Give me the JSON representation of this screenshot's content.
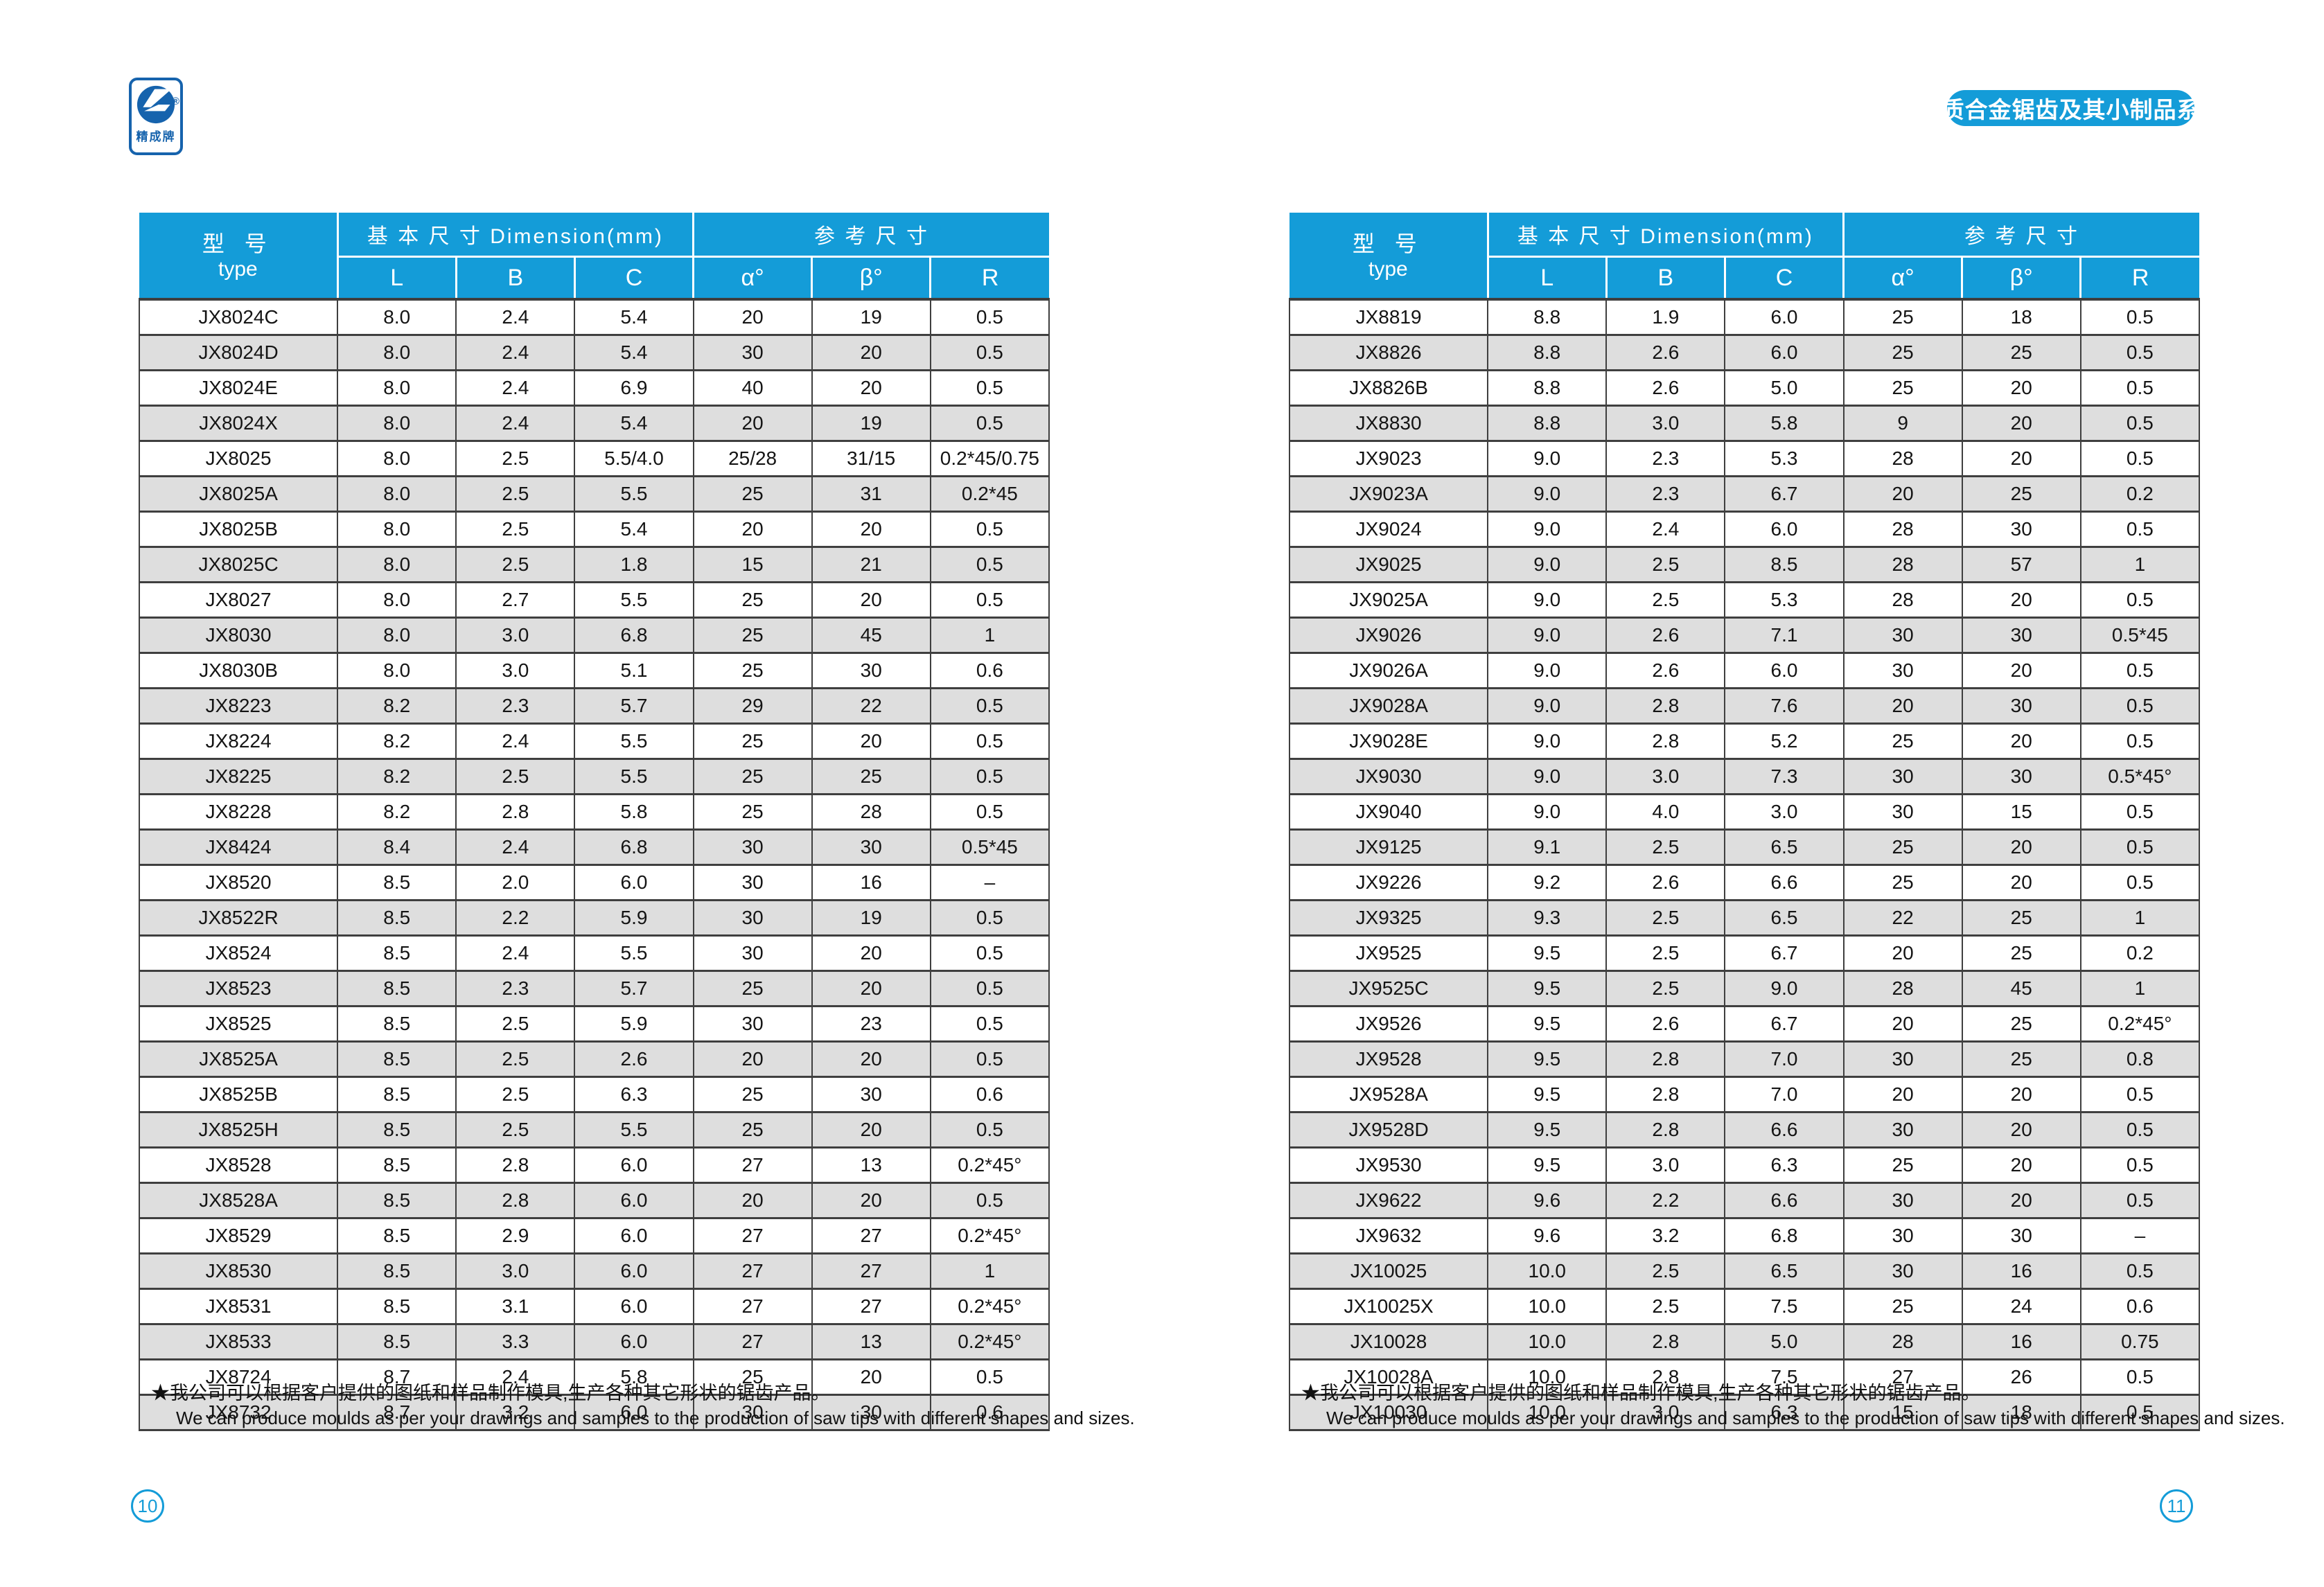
{
  "page": {
    "badge_label": "硬质合金锯齿及其小制品系列",
    "logo": {
      "brand_cn": "精成牌",
      "registered_mark": "®"
    },
    "footnote_cn": "★我公司可以根据客户提供的图纸和样品制作模具,生产各种其它形状的锯齿产品。",
    "footnote_en": "We can produce moulds as per your drawings and samples to the production of saw tips with different shapes and sizes.",
    "page_number_left": "10",
    "page_number_right": "11"
  },
  "colors": {
    "accent_blue": "#149cd8",
    "logo_blue": "#1663ad",
    "row_alt_gray": "#dedede",
    "grid_line": "#3f3f3f"
  },
  "table_header": {
    "type_cn": "型  号",
    "type_en": "type",
    "dimension_group": "基 本 尺 寸 Dimension(mm)",
    "reference_group": "参 考 尺 寸",
    "col_l": "L",
    "col_b": "B",
    "col_c": "C",
    "col_alpha": "α°",
    "col_beta": "β°",
    "col_r": "R"
  },
  "tables": [
    {
      "rows": [
        [
          "JX8024C",
          "8.0",
          "2.4",
          "5.4",
          "20",
          "19",
          "0.5"
        ],
        [
          "JX8024D",
          "8.0",
          "2.4",
          "5.4",
          "30",
          "20",
          "0.5"
        ],
        [
          "JX8024E",
          "8.0",
          "2.4",
          "6.9",
          "40",
          "20",
          "0.5"
        ],
        [
          "JX8024X",
          "8.0",
          "2.4",
          "5.4",
          "20",
          "19",
          "0.5"
        ],
        [
          "JX8025",
          "8.0",
          "2.5",
          "5.5/4.0",
          "25/28",
          "31/15",
          "0.2*45/0.75"
        ],
        [
          "JX8025A",
          "8.0",
          "2.5",
          "5.5",
          "25",
          "31",
          "0.2*45"
        ],
        [
          "JX8025B",
          "8.0",
          "2.5",
          "5.4",
          "20",
          "20",
          "0.5"
        ],
        [
          "JX8025C",
          "8.0",
          "2.5",
          "1.8",
          "15",
          "21",
          "0.5"
        ],
        [
          "JX8027",
          "8.0",
          "2.7",
          "5.5",
          "25",
          "20",
          "0.5"
        ],
        [
          "JX8030",
          "8.0",
          "3.0",
          "6.8",
          "25",
          "45",
          "1"
        ],
        [
          "JX8030B",
          "8.0",
          "3.0",
          "5.1",
          "25",
          "30",
          "0.6"
        ],
        [
          "JX8223",
          "8.2",
          "2.3",
          "5.7",
          "29",
          "22",
          "0.5"
        ],
        [
          "JX8224",
          "8.2",
          "2.4",
          "5.5",
          "25",
          "20",
          "0.5"
        ],
        [
          "JX8225",
          "8.2",
          "2.5",
          "5.5",
          "25",
          "25",
          "0.5"
        ],
        [
          "JX8228",
          "8.2",
          "2.8",
          "5.8",
          "25",
          "28",
          "0.5"
        ],
        [
          "JX8424",
          "8.4",
          "2.4",
          "6.8",
          "30",
          "30",
          "0.5*45"
        ],
        [
          "JX8520",
          "8.5",
          "2.0",
          "6.0",
          "30",
          "16",
          "–"
        ],
        [
          "JX8522R",
          "8.5",
          "2.2",
          "5.9",
          "30",
          "19",
          "0.5"
        ],
        [
          "JX8524",
          "8.5",
          "2.4",
          "5.5",
          "30",
          "20",
          "0.5"
        ],
        [
          "JX8523",
          "8.5",
          "2.3",
          "5.7",
          "25",
          "20",
          "0.5"
        ],
        [
          "JX8525",
          "8.5",
          "2.5",
          "5.9",
          "30",
          "23",
          "0.5"
        ],
        [
          "JX8525A",
          "8.5",
          "2.5",
          "2.6",
          "20",
          "20",
          "0.5"
        ],
        [
          "JX8525B",
          "8.5",
          "2.5",
          "6.3",
          "25",
          "30",
          "0.6"
        ],
        [
          "JX8525H",
          "8.5",
          "2.5",
          "5.5",
          "25",
          "20",
          "0.5"
        ],
        [
          "JX8528",
          "8.5",
          "2.8",
          "6.0",
          "27",
          "13",
          "0.2*45°"
        ],
        [
          "JX8528A",
          "8.5",
          "2.8",
          "6.0",
          "20",
          "20",
          "0.5"
        ],
        [
          "JX8529",
          "8.5",
          "2.9",
          "6.0",
          "27",
          "27",
          "0.2*45°"
        ],
        [
          "JX8530",
          "8.5",
          "3.0",
          "6.0",
          "27",
          "27",
          "1"
        ],
        [
          "JX8531",
          "8.5",
          "3.1",
          "6.0",
          "27",
          "27",
          "0.2*45°"
        ],
        [
          "JX8533",
          "8.5",
          "3.3",
          "6.0",
          "27",
          "13",
          "0.2*45°"
        ],
        [
          "JX8724",
          "8.7",
          "2.4",
          "5.8",
          "25",
          "20",
          "0.5"
        ],
        [
          "JX8732",
          "8.7",
          "3.2",
          "6.0",
          "30",
          "30",
          "0.6"
        ]
      ]
    },
    {
      "rows": [
        [
          "JX8819",
          "8.8",
          "1.9",
          "6.0",
          "25",
          "18",
          "0.5"
        ],
        [
          "JX8826",
          "8.8",
          "2.6",
          "6.0",
          "25",
          "25",
          "0.5"
        ],
        [
          "JX8826B",
          "8.8",
          "2.6",
          "5.0",
          "25",
          "20",
          "0.5"
        ],
        [
          "JX8830",
          "8.8",
          "3.0",
          "5.8",
          "9",
          "20",
          "0.5"
        ],
        [
          "JX9023",
          "9.0",
          "2.3",
          "5.3",
          "28",
          "20",
          "0.5"
        ],
        [
          "JX9023A",
          "9.0",
          "2.3",
          "6.7",
          "20",
          "25",
          "0.2"
        ],
        [
          "JX9024",
          "9.0",
          "2.4",
          "6.0",
          "28",
          "30",
          "0.5"
        ],
        [
          "JX9025",
          "9.0",
          "2.5",
          "8.5",
          "28",
          "57",
          "1"
        ],
        [
          "JX9025A",
          "9.0",
          "2.5",
          "5.3",
          "28",
          "20",
          "0.5"
        ],
        [
          "JX9026",
          "9.0",
          "2.6",
          "7.1",
          "30",
          "30",
          "0.5*45"
        ],
        [
          "JX9026A",
          "9.0",
          "2.6",
          "6.0",
          "30",
          "20",
          "0.5"
        ],
        [
          "JX9028A",
          "9.0",
          "2.8",
          "7.6",
          "20",
          "30",
          "0.5"
        ],
        [
          "JX9028E",
          "9.0",
          "2.8",
          "5.2",
          "25",
          "20",
          "0.5"
        ],
        [
          "JX9030",
          "9.0",
          "3.0",
          "7.3",
          "30",
          "30",
          "0.5*45°"
        ],
        [
          "JX9040",
          "9.0",
          "4.0",
          "3.0",
          "30",
          "15",
          "0.5"
        ],
        [
          "JX9125",
          "9.1",
          "2.5",
          "6.5",
          "25",
          "20",
          "0.5"
        ],
        [
          "JX9226",
          "9.2",
          "2.6",
          "6.6",
          "25",
          "20",
          "0.5"
        ],
        [
          "JX9325",
          "9.3",
          "2.5",
          "6.5",
          "22",
          "25",
          "1"
        ],
        [
          "JX9525",
          "9.5",
          "2.5",
          "6.7",
          "20",
          "25",
          "0.2"
        ],
        [
          "JX9525C",
          "9.5",
          "2.5",
          "9.0",
          "28",
          "45",
          "1"
        ],
        [
          "JX9526",
          "9.5",
          "2.6",
          "6.7",
          "20",
          "25",
          "0.2*45°"
        ],
        [
          "JX9528",
          "9.5",
          "2.8",
          "7.0",
          "30",
          "25",
          "0.8"
        ],
        [
          "JX9528A",
          "9.5",
          "2.8",
          "7.0",
          "20",
          "20",
          "0.5"
        ],
        [
          "JX9528D",
          "9.5",
          "2.8",
          "6.6",
          "30",
          "20",
          "0.5"
        ],
        [
          "JX9530",
          "9.5",
          "3.0",
          "6.3",
          "25",
          "20",
          "0.5"
        ],
        [
          "JX9622",
          "9.6",
          "2.2",
          "6.6",
          "30",
          "20",
          "0.5"
        ],
        [
          "JX9632",
          "9.6",
          "3.2",
          "6.8",
          "30",
          "30",
          "–"
        ],
        [
          "JX10025",
          "10.0",
          "2.5",
          "6.5",
          "30",
          "16",
          "0.5"
        ],
        [
          "JX10025X",
          "10.0",
          "2.5",
          "7.5",
          "25",
          "24",
          "0.6"
        ],
        [
          "JX10028",
          "10.0",
          "2.8",
          "5.0",
          "28",
          "16",
          "0.75"
        ],
        [
          "JX10028A",
          "10.0",
          "2.8",
          "7.5",
          "27",
          "26",
          "0.5"
        ],
        [
          "JX10030",
          "10.0",
          "3.0",
          "6.3",
          "15",
          "18",
          "0.5"
        ]
      ]
    }
  ]
}
